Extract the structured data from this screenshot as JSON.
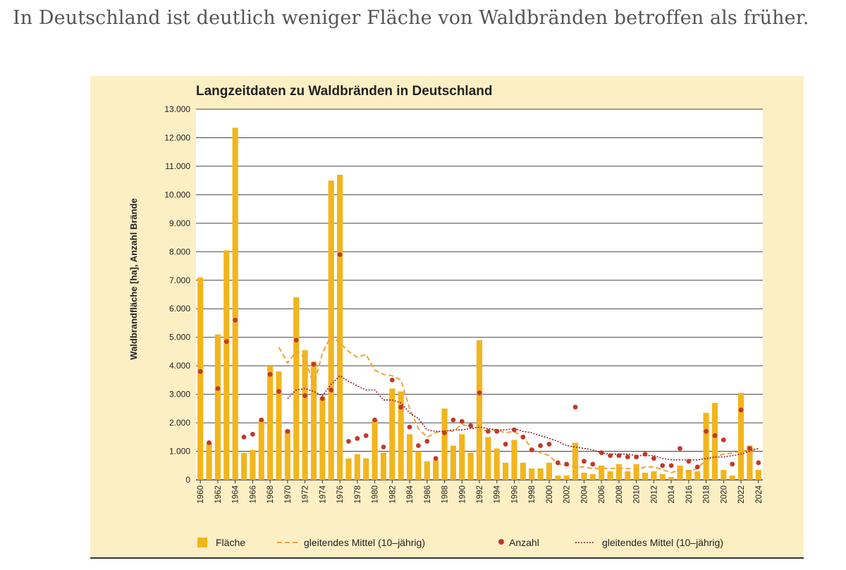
{
  "headline": "In Deutschland ist deutlich weniger Fläche von Waldbränden betroffen als früher.",
  "colors": {
    "card_background": "#fdefc4",
    "plot_background": "#ffffff",
    "bar": "#f2b51c",
    "area_mean_line": "#eea33a",
    "count_dot": "#c0392b",
    "count_mean_line": "#8e2036",
    "gridline": "#444444"
  },
  "chart_data": {
    "type": "bar",
    "title": "Langzeitdaten zu Waldbränden in Deutschland",
    "xlabel": "",
    "ylabel": "Waldbrandfläche [ha], Anzahl Brände",
    "ylim": [
      0,
      13000
    ],
    "yticks": [
      0,
      1000,
      2000,
      3000,
      4000,
      5000,
      6000,
      7000,
      8000,
      9000,
      10000,
      11000,
      12000,
      13000
    ],
    "ytick_labels": [
      "0",
      "1.000",
      "2.000",
      "3.000",
      "4.000",
      "5.000",
      "6.000",
      "7.000",
      "8.000",
      "9.000",
      "10.000",
      "11.000",
      "12.000",
      "13.000"
    ],
    "grid": true,
    "legend_placement": "bottom",
    "years": [
      1960,
      1961,
      1962,
      1963,
      1964,
      1965,
      1966,
      1967,
      1968,
      1969,
      1970,
      1971,
      1972,
      1973,
      1974,
      1975,
      1976,
      1977,
      1978,
      1979,
      1980,
      1981,
      1982,
      1983,
      1984,
      1985,
      1986,
      1987,
      1988,
      1989,
      1990,
      1991,
      1992,
      1993,
      1994,
      1995,
      1996,
      1997,
      1998,
      1999,
      2000,
      2001,
      2002,
      2003,
      2004,
      2005,
      2006,
      2007,
      2008,
      2009,
      2010,
      2011,
      2012,
      2013,
      2014,
      2015,
      2016,
      2017,
      2018,
      2019,
      2020,
      2021,
      2022,
      2023,
      2024
    ],
    "xtick_labels": [
      "1960",
      "1962",
      "1964",
      "1966",
      "1968",
      "1970",
      "1972",
      "1974",
      "1976",
      "1978",
      "1980",
      "1982",
      "1984",
      "1986",
      "1988",
      "1990",
      "1992",
      "1994",
      "1996",
      "1998",
      "2000",
      "2002",
      "2004",
      "2006",
      "2008",
      "2010",
      "2012",
      "2014",
      "2016",
      "2018",
      "2020",
      "2022",
      "2024"
    ],
    "series": [
      {
        "name": "Fläche",
        "kind": "bar",
        "values": [
          7100,
          1300,
          5100,
          8050,
          12350,
          950,
          1050,
          2100,
          4000,
          3800,
          1750,
          6400,
          4550,
          4150,
          2900,
          10500,
          10700,
          750,
          900,
          750,
          2100,
          950,
          3200,
          3100,
          1600,
          1000,
          650,
          700,
          2500,
          1200,
          1600,
          950,
          4900,
          1500,
          1100,
          600,
          1400,
          600,
          400,
          400,
          600,
          150,
          150,
          1300,
          250,
          200,
          500,
          300,
          550,
          300,
          550,
          250,
          300,
          200,
          100,
          500,
          350,
          300,
          2350,
          2700,
          350,
          150,
          3050,
          1200,
          350
        ]
      },
      {
        "name": "gleitendes Mittel (10-jährig)",
        "kind": "dashed-line",
        "values": [
          null,
          null,
          null,
          null,
          null,
          null,
          null,
          null,
          null,
          4650,
          4100,
          4500,
          4300,
          3300,
          4450,
          5050,
          4800,
          4500,
          4300,
          4400,
          3850,
          3700,
          3650,
          3500,
          2500,
          1800,
          1500,
          1650,
          1750,
          1700,
          1950,
          1850,
          1700,
          1750,
          1750,
          1650,
          1700,
          1500,
          1100,
          950,
          850,
          550,
          500,
          450,
          450,
          400,
          400,
          400,
          400,
          400,
          350,
          450,
          450,
          350,
          250,
          350,
          300,
          400,
          700,
          800,
          900,
          950,
          1000,
          1050,
          1100
        ]
      },
      {
        "name": "Anzahl",
        "kind": "dots",
        "values": [
          3800,
          1300,
          3200,
          4850,
          5600,
          1500,
          1600,
          2100,
          3700,
          3100,
          1700,
          4900,
          2950,
          4050,
          2850,
          3150,
          7900,
          1350,
          1450,
          1550,
          2100,
          1150,
          3500,
          2550,
          1850,
          1200,
          1350,
          750,
          1650,
          2100,
          2050,
          1900,
          3050,
          1700,
          1700,
          1250,
          1750,
          1500,
          1050,
          1200,
          1250,
          600,
          550,
          2550,
          650,
          550,
          950,
          850,
          850,
          800,
          800,
          900,
          750,
          500,
          500,
          1100,
          650,
          450,
          1700,
          1550,
          1400,
          550,
          2450,
          1100,
          600
        ]
      },
      {
        "name": "gleitendes Mittel (10-jährig)",
        "kind": "dotted-line",
        "values": [
          null,
          null,
          null,
          null,
          null,
          null,
          null,
          null,
          null,
          null,
          2850,
          3150,
          3200,
          3100,
          2950,
          3350,
          3650,
          3450,
          3300,
          3150,
          3150,
          2800,
          2800,
          2700,
          2350,
          2150,
          1750,
          1700,
          1700,
          1750,
          1750,
          1800,
          1850,
          1800,
          1750,
          1750,
          1800,
          1700,
          1650,
          1550,
          1450,
          1350,
          1200,
          1150,
          1100,
          1050,
          950,
          900,
          900,
          900,
          850,
          850,
          850,
          750,
          700,
          700,
          700,
          700,
          750,
          800,
          800,
          850,
          900,
          1000,
          1100
        ]
      }
    ],
    "legend": [
      {
        "label": "Fläche",
        "kind": "bar"
      },
      {
        "label": "gleitendes Mittel (10–jährig)",
        "kind": "dashed-line"
      },
      {
        "label": "Anzahl",
        "kind": "dots"
      },
      {
        "label": "gleitendes Mittel (10–jährig)",
        "kind": "dotted-line"
      }
    ]
  }
}
